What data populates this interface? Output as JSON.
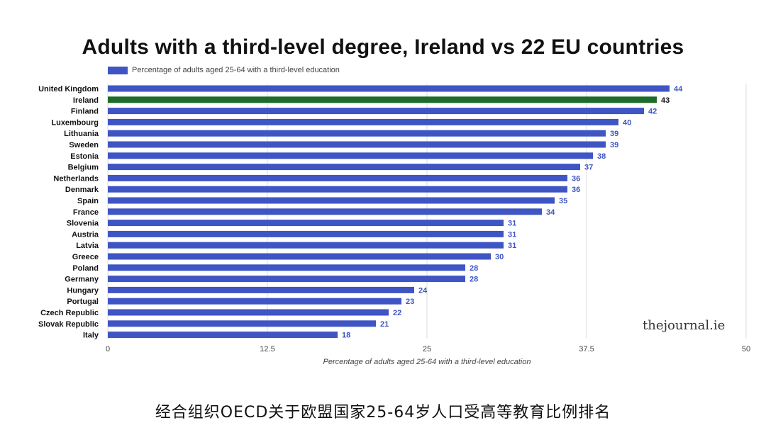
{
  "title": "Adults with a third-level degree, Ireland vs 22 EU countries",
  "watermark": "thejournal.ie",
  "caption": "经合组织OECD关于欧盟国家25-64岁人口受高等教育比例排名",
  "colors": {
    "bar": "#3f55c4",
    "highlight": "#1d6b2a",
    "label": "#3f55c4",
    "grid": "#dcdcdc",
    "axis_text": "#444444",
    "category_text": "#111111"
  },
  "chart_data": {
    "type": "bar",
    "orientation": "horizontal",
    "legend": {
      "label": "Percentage of adults aged 25-64 with a third-level education",
      "position": "top-left"
    },
    "xlabel": "Percentage of adults aged 25-64 with a third-level education",
    "ylabel": "",
    "xlim": [
      0,
      50
    ],
    "x_ticks": [
      "0",
      "12.5",
      "25",
      "37.5",
      "50"
    ],
    "grid": true,
    "highlight_category": "Ireland",
    "categories": [
      "United Kingdom",
      "Ireland",
      "Finland",
      "Luxembourg",
      "Lithuania",
      "Sweden",
      "Estonia",
      "Belgium",
      "Netherlands",
      "Denmark",
      "Spain",
      "France",
      "Slovenia",
      "Austria",
      "Latvia",
      "Greece",
      "Poland",
      "Germany",
      "Hungary",
      "Portugal",
      "Czech Republic",
      "Slovak Republic",
      "Italy"
    ],
    "values": [
      44,
      43,
      42,
      40,
      39,
      39,
      38,
      37,
      36,
      36,
      35,
      34,
      31,
      31,
      31,
      30,
      28,
      28,
      24,
      23,
      22,
      21,
      18
    ]
  }
}
